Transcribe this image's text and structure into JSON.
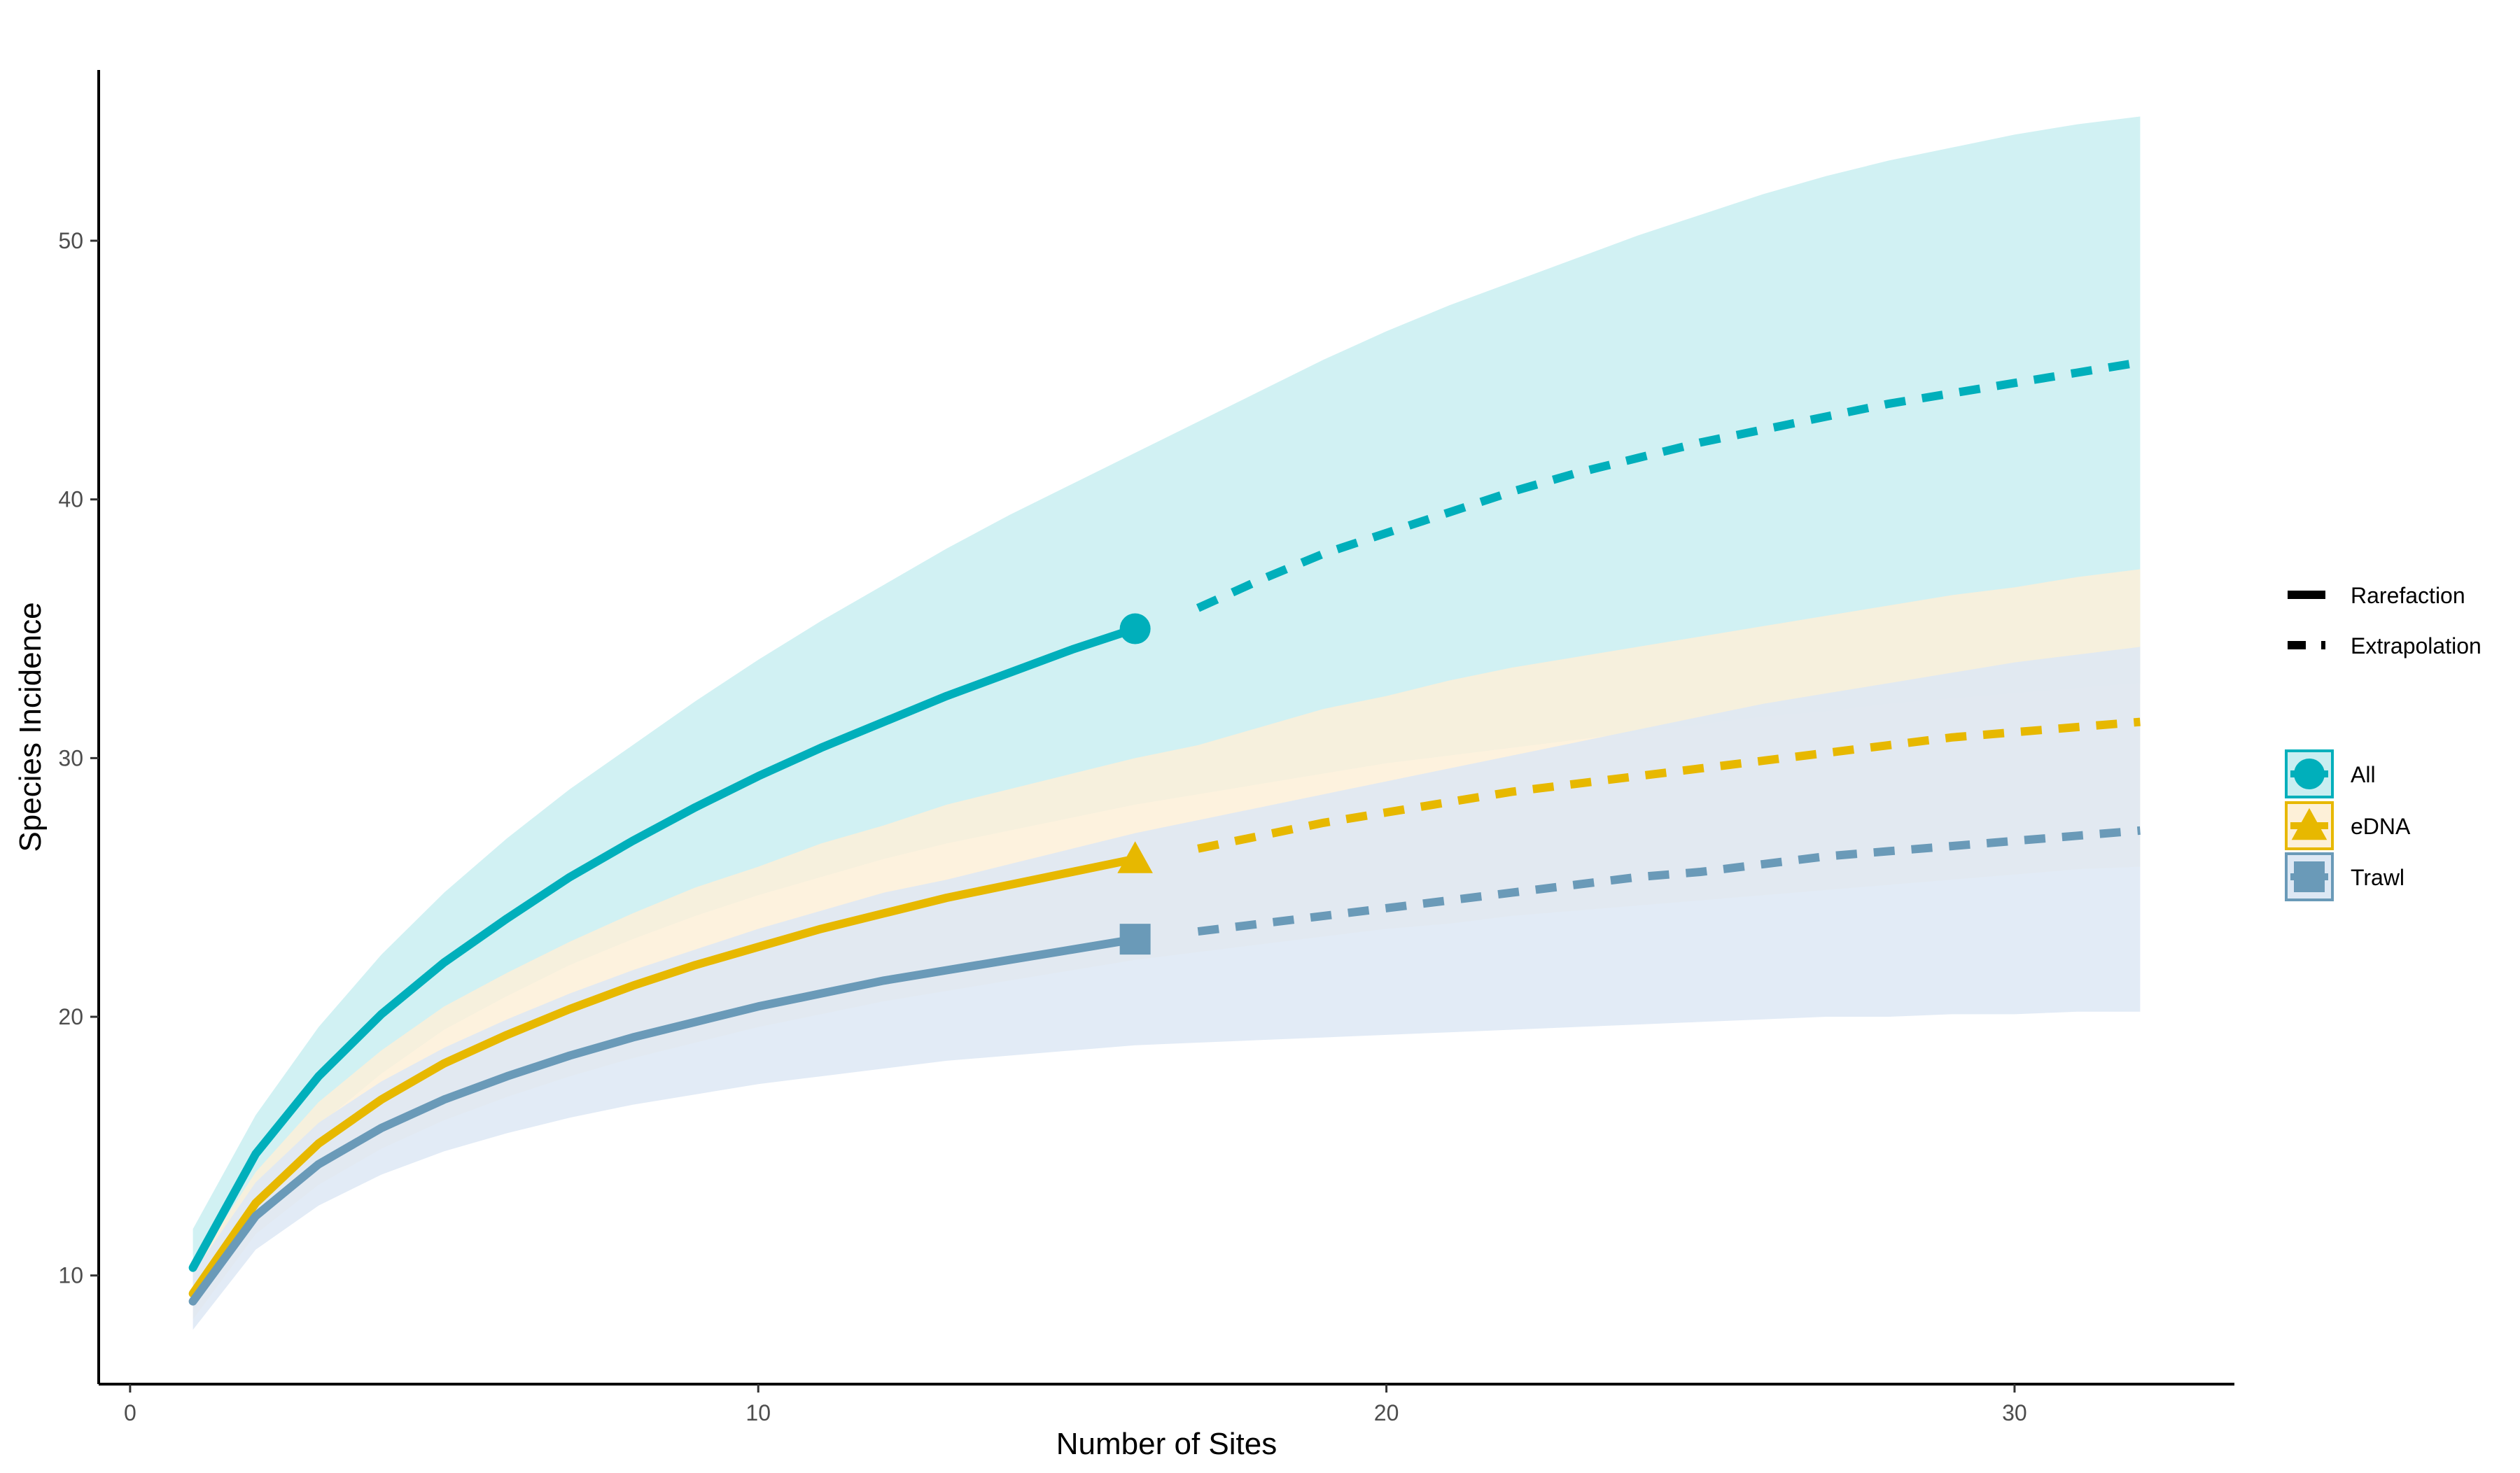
{
  "chart_data": {
    "type": "line",
    "title": "",
    "xlabel": "Number of Sites",
    "ylabel": "Species Incidence",
    "xlim": [
      -0.5,
      33.5
    ],
    "ylim": [
      5.8,
      56.6
    ],
    "xticks": [
      0,
      10,
      20,
      30
    ],
    "yticks": [
      10,
      20,
      30,
      40,
      50
    ],
    "grid": false,
    "observed_sites": 16,
    "legend_linetype": {
      "position": "right",
      "entries": [
        "Rarefaction",
        "Extrapolation"
      ]
    },
    "legend_groups": {
      "position": "right",
      "entries": [
        "All",
        "eDNA",
        "Trawl"
      ]
    },
    "series": [
      {
        "name": "All",
        "color": "#00AFBB",
        "band_color": "#c9eef1",
        "marker": "circle",
        "rarefaction": {
          "x": [
            1,
            2,
            3,
            4,
            5,
            6,
            7,
            8,
            9,
            10,
            11,
            12,
            13,
            14,
            15,
            16
          ],
          "y": [
            10.3,
            14.7,
            17.7,
            20.1,
            22.1,
            23.8,
            25.4,
            26.8,
            28.1,
            29.3,
            30.4,
            31.4,
            32.4,
            33.3,
            34.2,
            35.0
          ],
          "lower": [
            8.8,
            13.2,
            15.8,
            17.8,
            19.5,
            20.8,
            22.0,
            23.0,
            23.9,
            24.7,
            25.4,
            26.1,
            26.7,
            27.2,
            27.7,
            28.2
          ],
          "upper": [
            11.8,
            16.2,
            19.6,
            22.4,
            24.8,
            26.9,
            28.8,
            30.5,
            32.2,
            33.8,
            35.3,
            36.7,
            38.1,
            39.4,
            40.6,
            41.8
          ]
        },
        "extrapolation": {
          "x": [
            17,
            18,
            19,
            20,
            21,
            22,
            23,
            24,
            25,
            26,
            27,
            28,
            29,
            30,
            31,
            32
          ],
          "y": [
            35.8,
            36.9,
            37.9,
            38.7,
            39.5,
            40.3,
            41.0,
            41.6,
            42.2,
            42.7,
            43.2,
            43.7,
            44.1,
            44.5,
            44.9,
            45.3
          ],
          "lower": [
            28.6,
            29.0,
            29.4,
            29.8,
            30.1,
            30.4,
            30.7,
            31.0,
            31.3,
            31.6,
            31.8,
            32.1,
            32.3,
            32.5,
            32.7,
            32.9
          ],
          "upper": [
            43.0,
            44.2,
            45.4,
            46.5,
            47.5,
            48.4,
            49.3,
            50.2,
            51.0,
            51.8,
            52.5,
            53.1,
            53.6,
            54.1,
            54.5,
            54.8
          ]
        }
      },
      {
        "name": "eDNA",
        "color": "#E7B800",
        "band_color": "#fdf0d8",
        "marker": "triangle",
        "rarefaction": {
          "x": [
            1,
            2,
            3,
            4,
            5,
            6,
            7,
            8,
            9,
            10,
            11,
            12,
            13,
            14,
            15,
            16
          ],
          "y": [
            9.3,
            12.8,
            15.1,
            16.8,
            18.2,
            19.3,
            20.3,
            21.2,
            22.0,
            22.7,
            23.4,
            24.0,
            24.6,
            25.1,
            25.6,
            26.1
          ],
          "lower": [
            8.3,
            11.6,
            13.5,
            14.9,
            16.0,
            16.9,
            17.7,
            18.4,
            19.0,
            19.6,
            20.1,
            20.6,
            21.0,
            21.4,
            21.8,
            22.2
          ],
          "upper": [
            10.3,
            14.0,
            16.7,
            18.7,
            20.4,
            21.7,
            22.9,
            24.0,
            25.0,
            25.8,
            26.7,
            27.4,
            28.2,
            28.8,
            29.4,
            30.0
          ]
        },
        "extrapolation": {
          "x": [
            17,
            18,
            19,
            20,
            21,
            22,
            23,
            24,
            25,
            26,
            27,
            28,
            29,
            30,
            31,
            32
          ],
          "y": [
            26.5,
            27.0,
            27.5,
            27.9,
            28.3,
            28.7,
            29.0,
            29.3,
            29.6,
            29.9,
            30.2,
            30.5,
            30.8,
            31.0,
            31.2,
            31.4
          ],
          "lower": [
            22.5,
            22.8,
            23.1,
            23.4,
            23.6,
            23.9,
            24.1,
            24.3,
            24.5,
            24.7,
            24.9,
            25.1,
            25.3,
            25.5,
            25.7,
            25.8
          ],
          "upper": [
            30.5,
            31.2,
            31.9,
            32.4,
            33.0,
            33.5,
            33.9,
            34.3,
            34.7,
            35.1,
            35.5,
            35.9,
            36.3,
            36.6,
            37.0,
            37.3
          ]
        }
      },
      {
        "name": "Trawl",
        "color": "#6A9AB8",
        "band_color": "#dde8f4",
        "marker": "square",
        "rarefaction": {
          "x": [
            1,
            2,
            3,
            4,
            5,
            6,
            7,
            8,
            9,
            10,
            11,
            12,
            13,
            14,
            15,
            16
          ],
          "y": [
            9.0,
            12.3,
            14.3,
            15.7,
            16.8,
            17.7,
            18.5,
            19.2,
            19.8,
            20.4,
            20.9,
            21.4,
            21.8,
            22.2,
            22.6,
            23.0
          ],
          "lower": [
            7.9,
            11.0,
            12.7,
            13.9,
            14.8,
            15.5,
            16.1,
            16.6,
            17.0,
            17.4,
            17.7,
            18.0,
            18.3,
            18.5,
            18.7,
            18.9
          ],
          "upper": [
            10.1,
            13.6,
            15.9,
            17.5,
            18.8,
            19.9,
            20.9,
            21.8,
            22.6,
            23.4,
            24.1,
            24.8,
            25.3,
            25.9,
            26.5,
            27.1
          ]
        },
        "extrapolation": {
          "x": [
            17,
            18,
            19,
            20,
            21,
            22,
            23,
            24,
            25,
            26,
            27,
            28,
            29,
            30,
            31,
            32
          ],
          "y": [
            23.3,
            23.6,
            23.9,
            24.2,
            24.5,
            24.8,
            25.1,
            25.4,
            25.6,
            25.9,
            26.2,
            26.4,
            26.6,
            26.8,
            27.0,
            27.2
          ],
          "lower": [
            19.0,
            19.1,
            19.2,
            19.3,
            19.4,
            19.5,
            19.6,
            19.7,
            19.8,
            19.9,
            20.0,
            20.0,
            20.1,
            20.1,
            20.2,
            20.2
          ],
          "upper": [
            27.6,
            28.1,
            28.6,
            29.1,
            29.6,
            30.1,
            30.6,
            31.1,
            31.6,
            32.1,
            32.5,
            32.9,
            33.3,
            33.7,
            34.0,
            34.3
          ]
        }
      }
    ]
  }
}
